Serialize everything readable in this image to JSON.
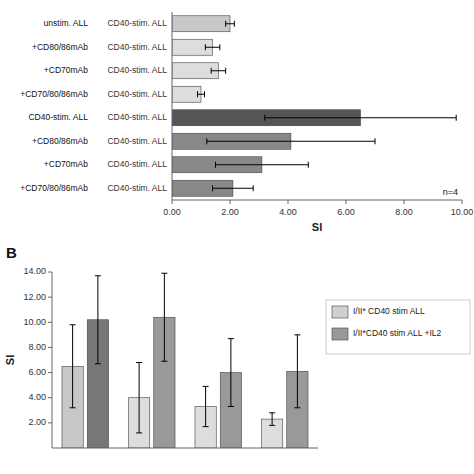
{
  "chart_data": [
    {
      "type": "bar",
      "orientation": "horizontal",
      "xlabel": "SI",
      "categories": [
        "unstim. ALL",
        "+CD80/86mAb",
        "+CD70mAb",
        "+CD70/80/86mAb",
        "CD40-stim. ALL",
        "+CD80/86mAb",
        "+CD70mAb",
        "+CD70/80/86mAb"
      ],
      "row_labels": [
        "CD40-stim. ALL",
        "CD40-stim. ALL",
        "CD40-stim. ALL",
        "CD40-stim. ALL",
        "CD40-stim. ALL",
        "CD40-stim. ALL",
        "CD40-stim. ALL",
        "CD40-stim. ALL"
      ],
      "values": [
        2.0,
        1.4,
        1.6,
        1.0,
        6.5,
        4.1,
        3.1,
        2.1
      ],
      "errors": [
        0.15,
        0.25,
        0.25,
        0.12,
        3.3,
        2.9,
        1.6,
        0.7
      ],
      "colors": [
        "#c8c8c8",
        "#dddddd",
        "#dddddd",
        "#dddddd",
        "#555555",
        "#888888",
        "#888888",
        "#888888"
      ],
      "xlim": [
        0,
        10.0
      ],
      "xticks": [
        {
          "value": 0,
          "label": "0.00"
        },
        {
          "value": 2,
          "label": "2.00"
        },
        {
          "value": 4,
          "label": "4.00"
        },
        {
          "value": 6,
          "label": "6.00"
        },
        {
          "value": 8,
          "label": "8.00"
        },
        {
          "value": 10,
          "label": "10.00"
        }
      ],
      "annotations": [
        "n=4"
      ]
    },
    {
      "type": "bar",
      "title": "B",
      "ylabel": "SI",
      "categories": [
        null,
        null,
        null,
        null
      ],
      "tick_labels": "y",
      "series": [
        {
          "name": "I/II* CD40 stim ALL",
          "color": "#d0d0d0",
          "colors": [
            "#c8c8c8",
            "#dddddd",
            "#dddddd",
            "#dddddd"
          ],
          "values": [
            6.5,
            4.0,
            3.3,
            2.3
          ],
          "errors": [
            3.3,
            2.8,
            1.6,
            0.5
          ]
        },
        {
          "name": "I/II*CD40 stim ALL +IL2",
          "color": "#999999",
          "colors": [
            "#777777",
            "#999999",
            "#999999",
            "#999999"
          ],
          "values": [
            10.2,
            10.4,
            6.0,
            6.1
          ],
          "errors": [
            3.5,
            3.5,
            2.7,
            2.9
          ]
        }
      ],
      "ylim": [
        0,
        14.0
      ],
      "yticks": [
        {
          "value": 2,
          "label": "2.00"
        },
        {
          "value": 4,
          "label": "4.00"
        },
        {
          "value": 6,
          "label": "6.00"
        },
        {
          "value": 8,
          "label": "8.00"
        },
        {
          "value": 10,
          "label": "10.00"
        },
        {
          "value": 12,
          "label": "12.00"
        },
        {
          "value": 14,
          "label": "14.00"
        }
      ],
      "legend": "right"
    }
  ]
}
